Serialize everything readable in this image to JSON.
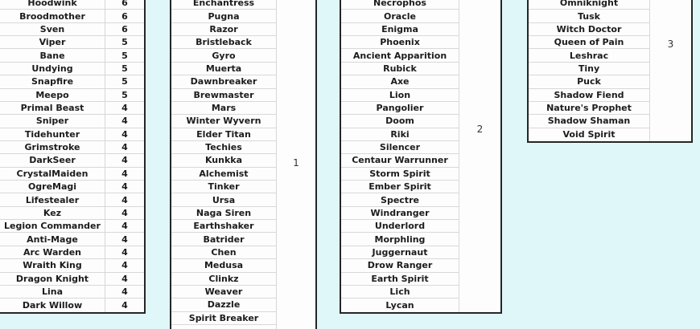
{
  "colors": {
    "page_background": "#e0f7fa",
    "cell_background": "#fdfdfd",
    "thick_border": "#262626",
    "thin_border": "#d8d8d8",
    "text": "#1c1c1c"
  },
  "tables": [
    {
      "id": "hero-counts",
      "rows": [
        {
          "name": "Hoodwink",
          "count": "6"
        },
        {
          "name": "Broodmother",
          "count": "6"
        },
        {
          "name": "Sven",
          "count": "6"
        },
        {
          "name": "Viper",
          "count": "5"
        },
        {
          "name": "Bane",
          "count": "5"
        },
        {
          "name": "Undying",
          "count": "5"
        },
        {
          "name": "Snapfire",
          "count": "5"
        },
        {
          "name": "Meepo",
          "count": "5"
        },
        {
          "name": "Primal Beast",
          "count": "4"
        },
        {
          "name": "Sniper",
          "count": "4"
        },
        {
          "name": "Tidehunter",
          "count": "4"
        },
        {
          "name": "Grimstroke",
          "count": "4"
        },
        {
          "name": "DarkSeer",
          "count": "4"
        },
        {
          "name": "CrystalMaiden",
          "count": "4"
        },
        {
          "name": "OgreMagi",
          "count": "4"
        },
        {
          "name": "Lifestealer",
          "count": "4"
        },
        {
          "name": "Kez",
          "count": "4"
        },
        {
          "name": "Legion Commander",
          "count": "4"
        },
        {
          "name": "Anti-Mage",
          "count": "4"
        },
        {
          "name": "Arc Warden",
          "count": "4"
        },
        {
          "name": "Wraith King",
          "count": "4"
        },
        {
          "name": "Dragon Knight",
          "count": "4"
        },
        {
          "name": "Lina",
          "count": "4"
        },
        {
          "name": "Dark Willow",
          "count": "4"
        }
      ]
    },
    {
      "id": "group-1",
      "number": "1",
      "rows": [
        {
          "name": "Enchantress"
        },
        {
          "name": "Pugna"
        },
        {
          "name": "Razor"
        },
        {
          "name": "Bristleback"
        },
        {
          "name": "Gyro"
        },
        {
          "name": "Muerta"
        },
        {
          "name": "Dawnbreaker"
        },
        {
          "name": "Brewmaster"
        },
        {
          "name": "Mars"
        },
        {
          "name": "Winter Wyvern"
        },
        {
          "name": "Elder Titan"
        },
        {
          "name": "Techies"
        },
        {
          "name": "Kunkka"
        },
        {
          "name": "Alchemist"
        },
        {
          "name": "Tinker"
        },
        {
          "name": "Ursa"
        },
        {
          "name": "Naga Siren"
        },
        {
          "name": "Earthshaker"
        },
        {
          "name": "Batrider"
        },
        {
          "name": "Chen"
        },
        {
          "name": "Medusa"
        },
        {
          "name": "Clinkz"
        },
        {
          "name": "Weaver"
        },
        {
          "name": "Dazzle"
        },
        {
          "name": "Spirit Breaker"
        }
      ]
    },
    {
      "id": "group-2",
      "number": "2",
      "rows": [
        {
          "name": "Necrophos"
        },
        {
          "name": "Oracle"
        },
        {
          "name": "Enigma"
        },
        {
          "name": "Phoenix"
        },
        {
          "name": "Ancient Apparition"
        },
        {
          "name": "Rubick"
        },
        {
          "name": "Axe"
        },
        {
          "name": "Lion"
        },
        {
          "name": "Pangolier"
        },
        {
          "name": "Doom"
        },
        {
          "name": "Riki"
        },
        {
          "name": "Silencer"
        },
        {
          "name": "Centaur Warrunner"
        },
        {
          "name": "Storm Spirit"
        },
        {
          "name": "Ember Spirit"
        },
        {
          "name": "Spectre"
        },
        {
          "name": "Windranger"
        },
        {
          "name": "Underlord"
        },
        {
          "name": "Morphling"
        },
        {
          "name": "Juggernaut"
        },
        {
          "name": "Drow Ranger"
        },
        {
          "name": "Earth Spirit"
        },
        {
          "name": "Lich"
        },
        {
          "name": "Lycan"
        }
      ]
    },
    {
      "id": "group-3",
      "number": "3",
      "rows": [
        {
          "name": "Omniknight"
        },
        {
          "name": "Tusk"
        },
        {
          "name": "Witch Doctor"
        },
        {
          "name": "Queen of Pain"
        },
        {
          "name": "Leshrac"
        },
        {
          "name": "Tiny"
        },
        {
          "name": "Puck"
        },
        {
          "name": "Shadow Fiend"
        },
        {
          "name": "Nature's Prophet"
        },
        {
          "name": "Shadow Shaman"
        },
        {
          "name": "Void Spirit"
        }
      ]
    }
  ]
}
